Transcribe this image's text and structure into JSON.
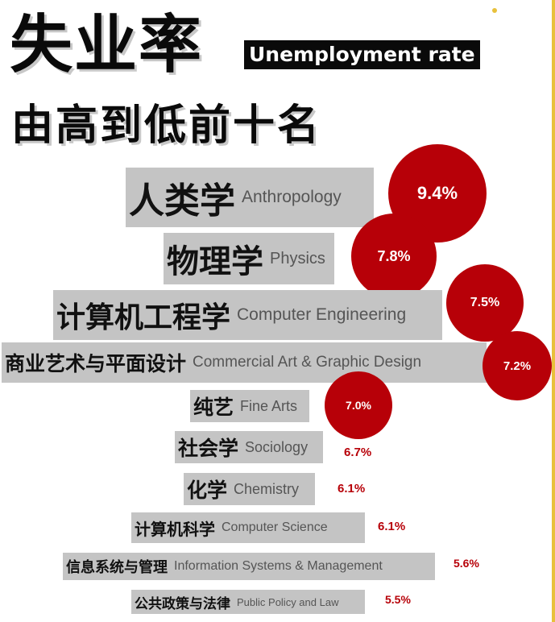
{
  "header": {
    "title_cn": "失业率",
    "title_en": "Unemployment rate",
    "subtitle": "由高到低前十名"
  },
  "colors": {
    "accent": "#b70008",
    "label_bg": "#c4c4c4",
    "edge": "#e8c13c"
  },
  "chart_data": {
    "type": "bar",
    "title": "失业率 Unemployment rate",
    "subtitle": "由高到低前十名",
    "categories": [
      "人类学 Anthropology",
      "物理学 Physics",
      "计算机工程学 Computer Engineering",
      "商业艺术与平面设计 Commercial Art & Graphic Design",
      "纯艺 Fine Arts",
      "社会学 Sociology",
      "化学 Chemistry",
      "计算机科学 Computer Science",
      "信息系统与管理 Information Systems & Management",
      "公共政策与法律 Public Policy and Law"
    ],
    "unit": "%",
    "items": [
      {
        "cn": "人类学",
        "en": "Anthropology",
        "value": 9.4,
        "label": "9.4%"
      },
      {
        "cn": "物理学",
        "en": "Physics",
        "value": 7.8,
        "label": "7.8%"
      },
      {
        "cn": "计算机工程学",
        "en": "Computer Engineering",
        "value": 7.5,
        "label": "7.5%"
      },
      {
        "cn": "商业艺术与平面设计",
        "en": "Commercial Art & Graphic Design",
        "value": 7.2,
        "label": "7.2%"
      },
      {
        "cn": "纯艺",
        "en": "Fine Arts",
        "value": 7.0,
        "label": "7.0%"
      },
      {
        "cn": "社会学",
        "en": "Sociology",
        "value": 6.7,
        "label": "6.7%"
      },
      {
        "cn": "化学",
        "en": "Chemistry",
        "value": 6.1,
        "label": "6.1%"
      },
      {
        "cn": "计算机科学",
        "en": "Computer Science",
        "value": 6.1,
        "label": "6.1%"
      },
      {
        "cn": "信息系统与管理",
        "en": "Information Systems & Management",
        "value": 5.6,
        "label": "5.6%"
      },
      {
        "cn": "公共政策与法律",
        "en": "Public Policy and Law",
        "value": 5.5,
        "label": "5.5%"
      }
    ]
  }
}
